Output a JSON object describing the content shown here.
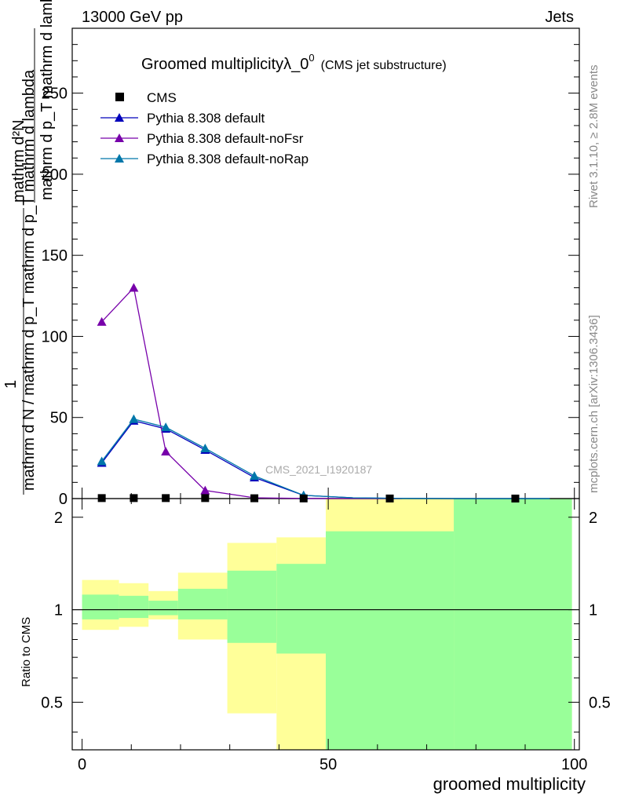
{
  "header": {
    "left": "13000 GeV pp",
    "right": "Jets"
  },
  "title": {
    "main": "Groomed multiplicityλ_0",
    "sup": "0",
    "sub": "(CMS jet substructure)"
  },
  "side_labels": {
    "rivet": "Rivet 3.1.10, ≥ 2.8M events",
    "mcplots": "mcplots.cern.ch [arXiv:1306.3436]"
  },
  "watermark": "CMS_2021_I1920187",
  "ylabel_top": {
    "numerator": "mathrm d²N",
    "denominator": "mathrm d p_T mathrm d lambda",
    "one": "1",
    "left": "mathrm d N / mathrm d p_T mathrm d p_T mathrm d lambda"
  },
  "ylabel_ratio": "Ratio to CMS",
  "xlabel": "groomed multiplicity",
  "colors": {
    "cms": "#000000",
    "default": "#0000bb",
    "noFsr": "#7700aa",
    "noRap": "#0077aa",
    "band_inner": "#99ff99",
    "band_outer": "#ffff99"
  },
  "chart_data": {
    "type": "line",
    "xlim": [
      -2,
      101
    ],
    "ylim": [
      0,
      290
    ],
    "ratio_ylim": [
      0.35,
      2.3
    ],
    "x_ticks": [
      "0",
      "50",
      "100"
    ],
    "y_ticks": [
      "0",
      "50",
      "100",
      "150",
      "200",
      "250"
    ],
    "ratio_ticks": [
      "0.5",
      "1",
      "2"
    ],
    "legend": [
      "CMS",
      "Pythia 8.308 default",
      "Pythia 8.308 default-noFsr",
      "Pythia 8.308 default-noRap"
    ],
    "cms": {
      "x": [
        4,
        10.5,
        17,
        25,
        35,
        45,
        62.5,
        88
      ],
      "y": [
        0.3,
        0.3,
        0.3,
        0.3,
        0.2,
        0.1,
        0.05,
        0.02
      ]
    },
    "series": [
      {
        "name": "Pythia 8.308 default",
        "x": [
          4,
          10.5,
          17,
          25,
          35,
          45,
          55,
          65,
          75,
          85,
          95
        ],
        "y": [
          22,
          48,
          43,
          30,
          13,
          2,
          0.5,
          0.1,
          0,
          0,
          0
        ]
      },
      {
        "name": "Pythia 8.308 default-noFsr",
        "x": [
          4,
          10.5,
          17,
          25,
          35,
          45,
          55,
          65
        ],
        "y": [
          109,
          130,
          29,
          5,
          0.5,
          0.1,
          0,
          0
        ]
      },
      {
        "name": "Pythia 8.308 default-noRap",
        "x": [
          4,
          10.5,
          17,
          25,
          35,
          45,
          55,
          65,
          75,
          85,
          95
        ],
        "y": [
          23,
          49,
          44,
          31,
          14,
          2,
          0.5,
          0.1,
          0,
          0,
          0
        ]
      }
    ],
    "ratio_bands": [
      {
        "x0": 0,
        "x1": 7.5,
        "inner": [
          0.93,
          1.12
        ],
        "outer": [
          0.86,
          1.25
        ]
      },
      {
        "x0": 7.5,
        "x1": 13.5,
        "inner": [
          0.94,
          1.11
        ],
        "outer": [
          0.88,
          1.22
        ]
      },
      {
        "x0": 13.5,
        "x1": 19.5,
        "inner": [
          0.96,
          1.07
        ],
        "outer": [
          0.93,
          1.15
        ]
      },
      {
        "x0": 19.5,
        "x1": 29.5,
        "inner": [
          0.93,
          1.17
        ],
        "outer": [
          0.8,
          1.32
        ]
      },
      {
        "x0": 29.5,
        "x1": 39.5,
        "inner": [
          0.78,
          1.34
        ],
        "outer": [
          0.46,
          1.65
        ]
      },
      {
        "x0": 39.5,
        "x1": 49.5,
        "inner": [
          0.72,
          1.41
        ],
        "outer": [
          0.35,
          1.72
        ]
      },
      {
        "x0": 49.5,
        "x1": 75.5,
        "inner": [
          0.35,
          1.8
        ],
        "outer": [
          0.35,
          2.3
        ]
      },
      {
        "x0": 75.5,
        "x1": 99.5,
        "inner": [
          0.35,
          2.3
        ],
        "outer": [
          0.35,
          2.3
        ]
      }
    ],
    "ratio_reference": 1
  }
}
